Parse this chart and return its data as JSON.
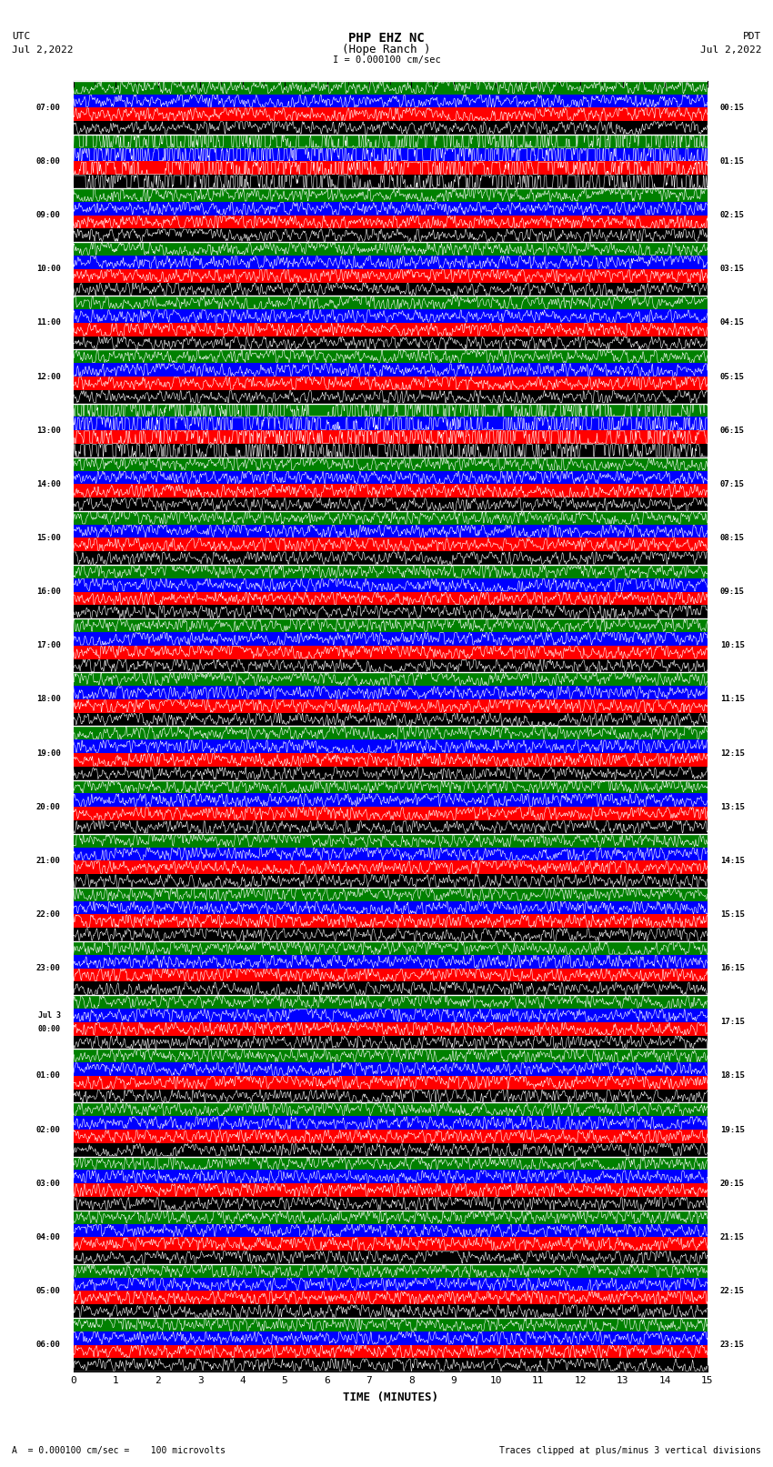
{
  "title_line1": "PHP EHZ NC",
  "title_line2": "(Hope Ranch )",
  "title_line3": "I = 0.000100 cm/sec",
  "left_label_top": "UTC",
  "left_label_date": "Jul 2,2022",
  "right_label_top": "PDT",
  "right_label_date": "Jul 2,2022",
  "bottom_label": "TIME (MINUTES)",
  "footer_left": "A  = 0.000100 cm/sec =    100 microvolts",
  "footer_right": "Traces clipped at plus/minus 3 vertical divisions",
  "utc_times": [
    "07:00",
    "08:00",
    "09:00",
    "10:00",
    "11:00",
    "12:00",
    "13:00",
    "14:00",
    "15:00",
    "16:00",
    "17:00",
    "18:00",
    "19:00",
    "20:00",
    "21:00",
    "22:00",
    "23:00",
    "Jul 3\n00:00",
    "01:00",
    "02:00",
    "03:00",
    "04:00",
    "05:00",
    "06:00"
  ],
  "pdt_times": [
    "00:15",
    "01:15",
    "02:15",
    "03:15",
    "04:15",
    "05:15",
    "06:15",
    "07:15",
    "08:15",
    "09:15",
    "10:15",
    "11:15",
    "12:15",
    "13:15",
    "14:15",
    "15:15",
    "16:15",
    "17:15",
    "18:15",
    "19:15",
    "20:15",
    "21:15",
    "22:15",
    "23:15"
  ],
  "n_rows": 24,
  "n_minutes": 15,
  "band_colors": [
    "black",
    "red",
    "blue",
    "green"
  ],
  "trace_color": "white",
  "bg_color": "white",
  "seed": 42,
  "n_pts": 1800,
  "noise_std": 0.25,
  "special_rows": [
    1,
    6
  ],
  "special_amp": [
    4.0,
    3.5
  ]
}
